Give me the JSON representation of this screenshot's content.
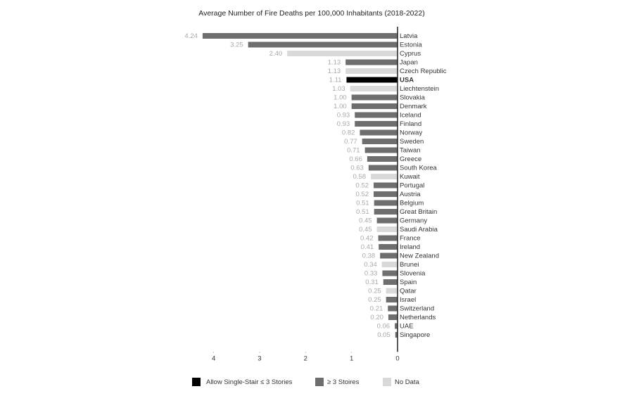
{
  "chart_data": {
    "type": "bar",
    "orientation": "horizontal",
    "title": "Average Number of Fire Deaths per 100,000 Inhabitants (2018-2022)",
    "categories": [
      "Latvia",
      "Estonia",
      "Cyprus",
      "Japan",
      "Czech Republic",
      "USA",
      "Liechtenstein",
      "Slovakia",
      "Denmark",
      "Iceland",
      "Finland",
      "Norway",
      "Sweden",
      "Taiwan",
      "Greece",
      "South Korea",
      "Kuwait",
      "Portugal",
      "Austria",
      "Belgium",
      "Great Britain",
      "Germany",
      "Saudi Arabia",
      "France",
      "Ireland",
      "New Zealand",
      "Brunei",
      "Slovenia",
      "Spain",
      "Qatar",
      "Israel",
      "Switzerland",
      "Netherlands",
      "UAE",
      "Singapore"
    ],
    "values": [
      4.24,
      3.25,
      2.4,
      1.13,
      1.13,
      1.11,
      1.03,
      1.0,
      1.0,
      0.93,
      0.93,
      0.82,
      0.77,
      0.71,
      0.66,
      0.63,
      0.58,
      0.52,
      0.52,
      0.51,
      0.51,
      0.45,
      0.45,
      0.42,
      0.41,
      0.38,
      0.34,
      0.33,
      0.31,
      0.25,
      0.25,
      0.21,
      0.2,
      0.06,
      0.05
    ],
    "value_labels": [
      "4.24",
      "3.25",
      "2.40",
      "1.13",
      "1.13",
      "1.11",
      "1.03",
      "1.00",
      "1.00",
      "0.93",
      "0.93",
      "0.82",
      "0.77",
      "0.71",
      "0.66",
      "0.63",
      "0.58",
      "0.52",
      "0.52",
      "0.51",
      "0.51",
      "0.45",
      "0.45",
      "0.42",
      "0.41",
      "0.38",
      "0.34",
      "0.33",
      "0.31",
      "0.25",
      "0.25",
      "0.21",
      "0.20",
      "0.06",
      "0.05"
    ],
    "colors": [
      "#6e6e6e",
      "#6e6e6e",
      "#d9d9d9",
      "#6e6e6e",
      "#d9d9d9",
      "#000000",
      "#d9d9d9",
      "#6e6e6e",
      "#6e6e6e",
      "#6e6e6e",
      "#6e6e6e",
      "#6e6e6e",
      "#6e6e6e",
      "#6e6e6e",
      "#6e6e6e",
      "#6e6e6e",
      "#d9d9d9",
      "#6e6e6e",
      "#6e6e6e",
      "#6e6e6e",
      "#6e6e6e",
      "#6e6e6e",
      "#d9d9d9",
      "#6e6e6e",
      "#6e6e6e",
      "#6e6e6e",
      "#d9d9d9",
      "#6e6e6e",
      "#6e6e6e",
      "#d9d9d9",
      "#6e6e6e",
      "#6e6e6e",
      "#6e6e6e",
      "#6e6e6e",
      "#6e6e6e"
    ],
    "xlim": [
      0,
      4.3
    ],
    "xticks": [
      4,
      3,
      2,
      1,
      0
    ],
    "x_reversed": true,
    "grid": false,
    "legend": [
      {
        "name": "Allow Single-Stair ≤ 3 Stories",
        "color": "#000000"
      },
      {
        "name": "≥ 3 Stoires",
        "color": "#6e6e6e"
      },
      {
        "name": "No Data",
        "color": "#d9d9d9"
      }
    ]
  }
}
